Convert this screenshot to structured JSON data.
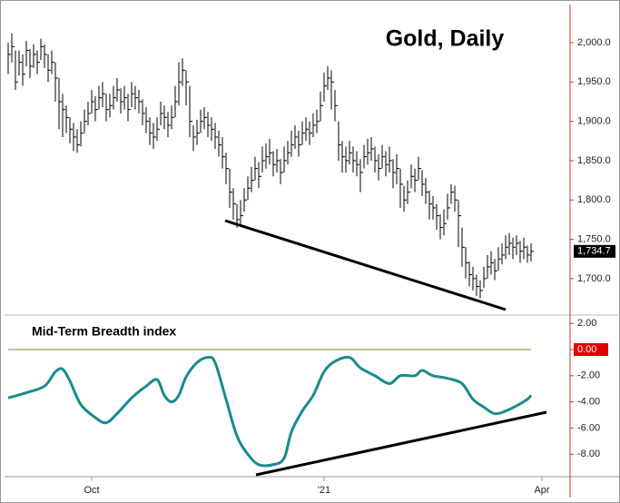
{
  "chart_data": [
    {
      "type": "ohlc",
      "title": "Gold, Daily",
      "color": "#000000",
      "x": [
        0,
        1,
        2,
        3,
        4,
        5,
        6,
        7,
        8,
        9,
        10,
        11,
        12,
        13,
        14,
        15,
        16,
        17,
        18,
        19,
        20,
        21,
        22,
        23,
        24,
        25,
        26,
        27,
        28,
        29,
        30,
        31,
        32,
        33,
        34,
        35,
        36,
        37,
        38,
        39,
        40,
        41,
        42,
        43,
        44,
        45,
        46,
        47,
        48,
        49,
        50,
        51,
        52,
        53,
        54,
        55,
        56,
        57,
        58,
        59,
        60,
        61,
        62,
        63,
        64,
        65,
        66,
        67,
        68,
        69,
        70,
        71,
        72,
        73,
        74,
        75,
        76,
        77,
        78,
        79,
        80,
        81,
        82,
        83,
        84,
        85,
        86,
        87,
        88,
        89,
        90,
        91,
        92,
        93,
        94,
        95,
        96,
        97,
        98,
        99,
        100,
        101,
        102,
        103,
        104,
        105,
        106,
        107,
        108,
        109,
        110,
        111,
        112,
        113,
        114,
        115,
        116,
        117,
        118,
        119,
        120,
        121,
        122,
        123,
        124,
        125,
        126,
        127,
        128,
        129,
        130,
        131,
        132,
        133,
        134,
        135,
        136,
        137,
        138,
        139,
        140,
        141,
        142,
        143,
        144
      ],
      "high": [
        2000,
        2012,
        1990,
        1990,
        1985,
        2002,
        1992,
        1998,
        1990,
        2005,
        1998,
        1985,
        1990,
        1975,
        1955,
        1935,
        1920,
        1905,
        1898,
        1890,
        1900,
        1915,
        1925,
        1940,
        1932,
        1945,
        1950,
        1935,
        1935,
        1945,
        1955,
        1942,
        1945,
        1935,
        1950,
        1945,
        1940,
        1928,
        1918,
        1905,
        1898,
        1905,
        1925,
        1920,
        1912,
        1920,
        1945,
        1975,
        1980,
        1965,
        1945,
        1895,
        1902,
        1915,
        1918,
        1912,
        1905,
        1898,
        1888,
        1880,
        1860,
        1840,
        1815,
        1795,
        1800,
        1815,
        1830,
        1842,
        1855,
        1848,
        1868,
        1872,
        1878,
        1862,
        1865,
        1852,
        1868,
        1875,
        1888,
        1895,
        1888,
        1900,
        1905,
        1900,
        1910,
        1915,
        1938,
        1962,
        1970,
        1965,
        1940,
        1900,
        1875,
        1868,
        1875,
        1868,
        1862,
        1852,
        1870,
        1878,
        1880,
        1868,
        1858,
        1870,
        1862,
        1868,
        1852,
        1858,
        1840,
        1818,
        1825,
        1845,
        1840,
        1855,
        1838,
        1828,
        1812,
        1805,
        1795,
        1782,
        1788,
        1808,
        1820,
        1818,
        1800,
        1765,
        1740,
        1722,
        1715,
        1705,
        1698,
        1715,
        1730,
        1735,
        1725,
        1740,
        1745,
        1755,
        1758,
        1752,
        1755,
        1748,
        1752,
        1742,
        1745
      ],
      "low": [
        1960,
        1975,
        1940,
        1958,
        1945,
        1970,
        1955,
        1968,
        1960,
        1978,
        1968,
        1950,
        1960,
        1925,
        1890,
        1880,
        1885,
        1872,
        1862,
        1860,
        1868,
        1885,
        1895,
        1910,
        1900,
        1915,
        1918,
        1900,
        1905,
        1915,
        1925,
        1910,
        1915,
        1900,
        1918,
        1915,
        1910,
        1895,
        1885,
        1870,
        1865,
        1875,
        1895,
        1890,
        1880,
        1890,
        1905,
        1920,
        1945,
        1920,
        1880,
        1862,
        1870,
        1885,
        1890,
        1880,
        1875,
        1865,
        1855,
        1840,
        1820,
        1790,
        1775,
        1765,
        1768,
        1785,
        1800,
        1810,
        1825,
        1815,
        1835,
        1840,
        1845,
        1830,
        1835,
        1820,
        1835,
        1845,
        1855,
        1865,
        1855,
        1870,
        1875,
        1870,
        1880,
        1885,
        1900,
        1925,
        1940,
        1915,
        1900,
        1850,
        1835,
        1835,
        1845,
        1835,
        1830,
        1810,
        1840,
        1845,
        1850,
        1835,
        1825,
        1840,
        1830,
        1835,
        1815,
        1820,
        1790,
        1785,
        1795,
        1815,
        1810,
        1825,
        1805,
        1795,
        1775,
        1775,
        1762,
        1750,
        1755,
        1775,
        1795,
        1785,
        1740,
        1715,
        1700,
        1690,
        1685,
        1678,
        1675,
        1688,
        1700,
        1705,
        1698,
        1710,
        1718,
        1725,
        1730,
        1725,
        1730,
        1720,
        1725,
        1720,
        1722
      ],
      "close": [
        1985,
        1995,
        1950,
        1975,
        1960,
        1990,
        1970,
        1985,
        1975,
        1995,
        1985,
        1965,
        1975,
        1955,
        1925,
        1915,
        1905,
        1890,
        1880,
        1870,
        1885,
        1900,
        1910,
        1925,
        1915,
        1930,
        1935,
        1915,
        1920,
        1930,
        1940,
        1925,
        1930,
        1915,
        1935,
        1930,
        1925,
        1910,
        1900,
        1885,
        1880,
        1890,
        1910,
        1905,
        1895,
        1905,
        1925,
        1950,
        1965,
        1950,
        1900,
        1880,
        1885,
        1900,
        1905,
        1895,
        1890,
        1880,
        1870,
        1855,
        1840,
        1810,
        1795,
        1775,
        1780,
        1800,
        1815,
        1825,
        1840,
        1830,
        1850,
        1855,
        1860,
        1845,
        1850,
        1835,
        1850,
        1860,
        1870,
        1880,
        1870,
        1885,
        1890,
        1885,
        1895,
        1900,
        1920,
        1945,
        1955,
        1950,
        1920,
        1870,
        1855,
        1850,
        1860,
        1850,
        1845,
        1835,
        1855,
        1860,
        1865,
        1850,
        1840,
        1855,
        1845,
        1850,
        1835,
        1840,
        1820,
        1800,
        1810,
        1830,
        1825,
        1840,
        1820,
        1810,
        1795,
        1790,
        1780,
        1765,
        1770,
        1790,
        1810,
        1800,
        1780,
        1740,
        1720,
        1705,
        1700,
        1690,
        1685,
        1700,
        1715,
        1720,
        1710,
        1725,
        1730,
        1740,
        1745,
        1740,
        1745,
        1735,
        1740,
        1730,
        1734.7
      ],
      "last_label": "1,734.7",
      "xlim": [
        -1,
        154.75
      ],
      "ylim": [
        1656,
        2048.5
      ],
      "yticks": [
        {
          "value": 1700,
          "label": "1,700.0"
        },
        {
          "value": 1750,
          "label": "1,750.0"
        },
        {
          "value": 1800,
          "label": "1,800.0"
        },
        {
          "value": 1850,
          "label": "1,850.0"
        },
        {
          "value": 1900,
          "label": "1,900.0"
        },
        {
          "value": 1950,
          "label": "1,950.0"
        },
        {
          "value": 2000,
          "label": "2,000.0"
        }
      ]
    },
    {
      "type": "line",
      "title": "Mid-Term Breadth index",
      "color": "#1b8a8c",
      "x": [
        0,
        5,
        10,
        13,
        15,
        17,
        20,
        24,
        27,
        30,
        34,
        38,
        41,
        43,
        45,
        47,
        49,
        52,
        55,
        57,
        60,
        63,
        66,
        69,
        73,
        76,
        78,
        81,
        84,
        87,
        90,
        94,
        97,
        101,
        105,
        108,
        112,
        114,
        117,
        121,
        125,
        128,
        131,
        134,
        137,
        140,
        143,
        144
      ],
      "values": [
        -3.7,
        -3.3,
        -2.8,
        -1.7,
        -1.5,
        -2.4,
        -4.2,
        -5.2,
        -5.6,
        -4.9,
        -3.7,
        -2.8,
        -2.3,
        -3.5,
        -4.0,
        -3.5,
        -2.1,
        -1.0,
        -0.6,
        -1.0,
        -3.8,
        -6.6,
        -8.0,
        -8.8,
        -8.8,
        -8.3,
        -6.3,
        -4.7,
        -3.5,
        -1.7,
        -0.9,
        -0.6,
        -1.4,
        -2.0,
        -2.6,
        -2.0,
        -2.0,
        -1.6,
        -2.0,
        -2.2,
        -2.6,
        -3.8,
        -4.4,
        -4.9,
        -4.7,
        -4.3,
        -3.8,
        -3.5
      ],
      "hline": 0,
      "hline_color": "#8a8a20",
      "xlim": [
        -1,
        154.75
      ],
      "ylim": [
        -9.72,
        2.57
      ],
      "yticks": [
        {
          "value": 2,
          "label": "2.00"
        },
        {
          "value": 0,
          "label": "0.00"
        },
        {
          "value": -2,
          "label": "-2.00"
        },
        {
          "value": -4,
          "label": "-4.00"
        },
        {
          "value": -6,
          "label": "-6.00"
        },
        {
          "value": -8,
          "label": "-8.00"
        }
      ],
      "xticks": [
        {
          "value": 23,
          "label": "Oct"
        },
        {
          "value": 87,
          "label": "'21"
        },
        {
          "value": 147,
          "label": "Apr"
        }
      ]
    }
  ]
}
